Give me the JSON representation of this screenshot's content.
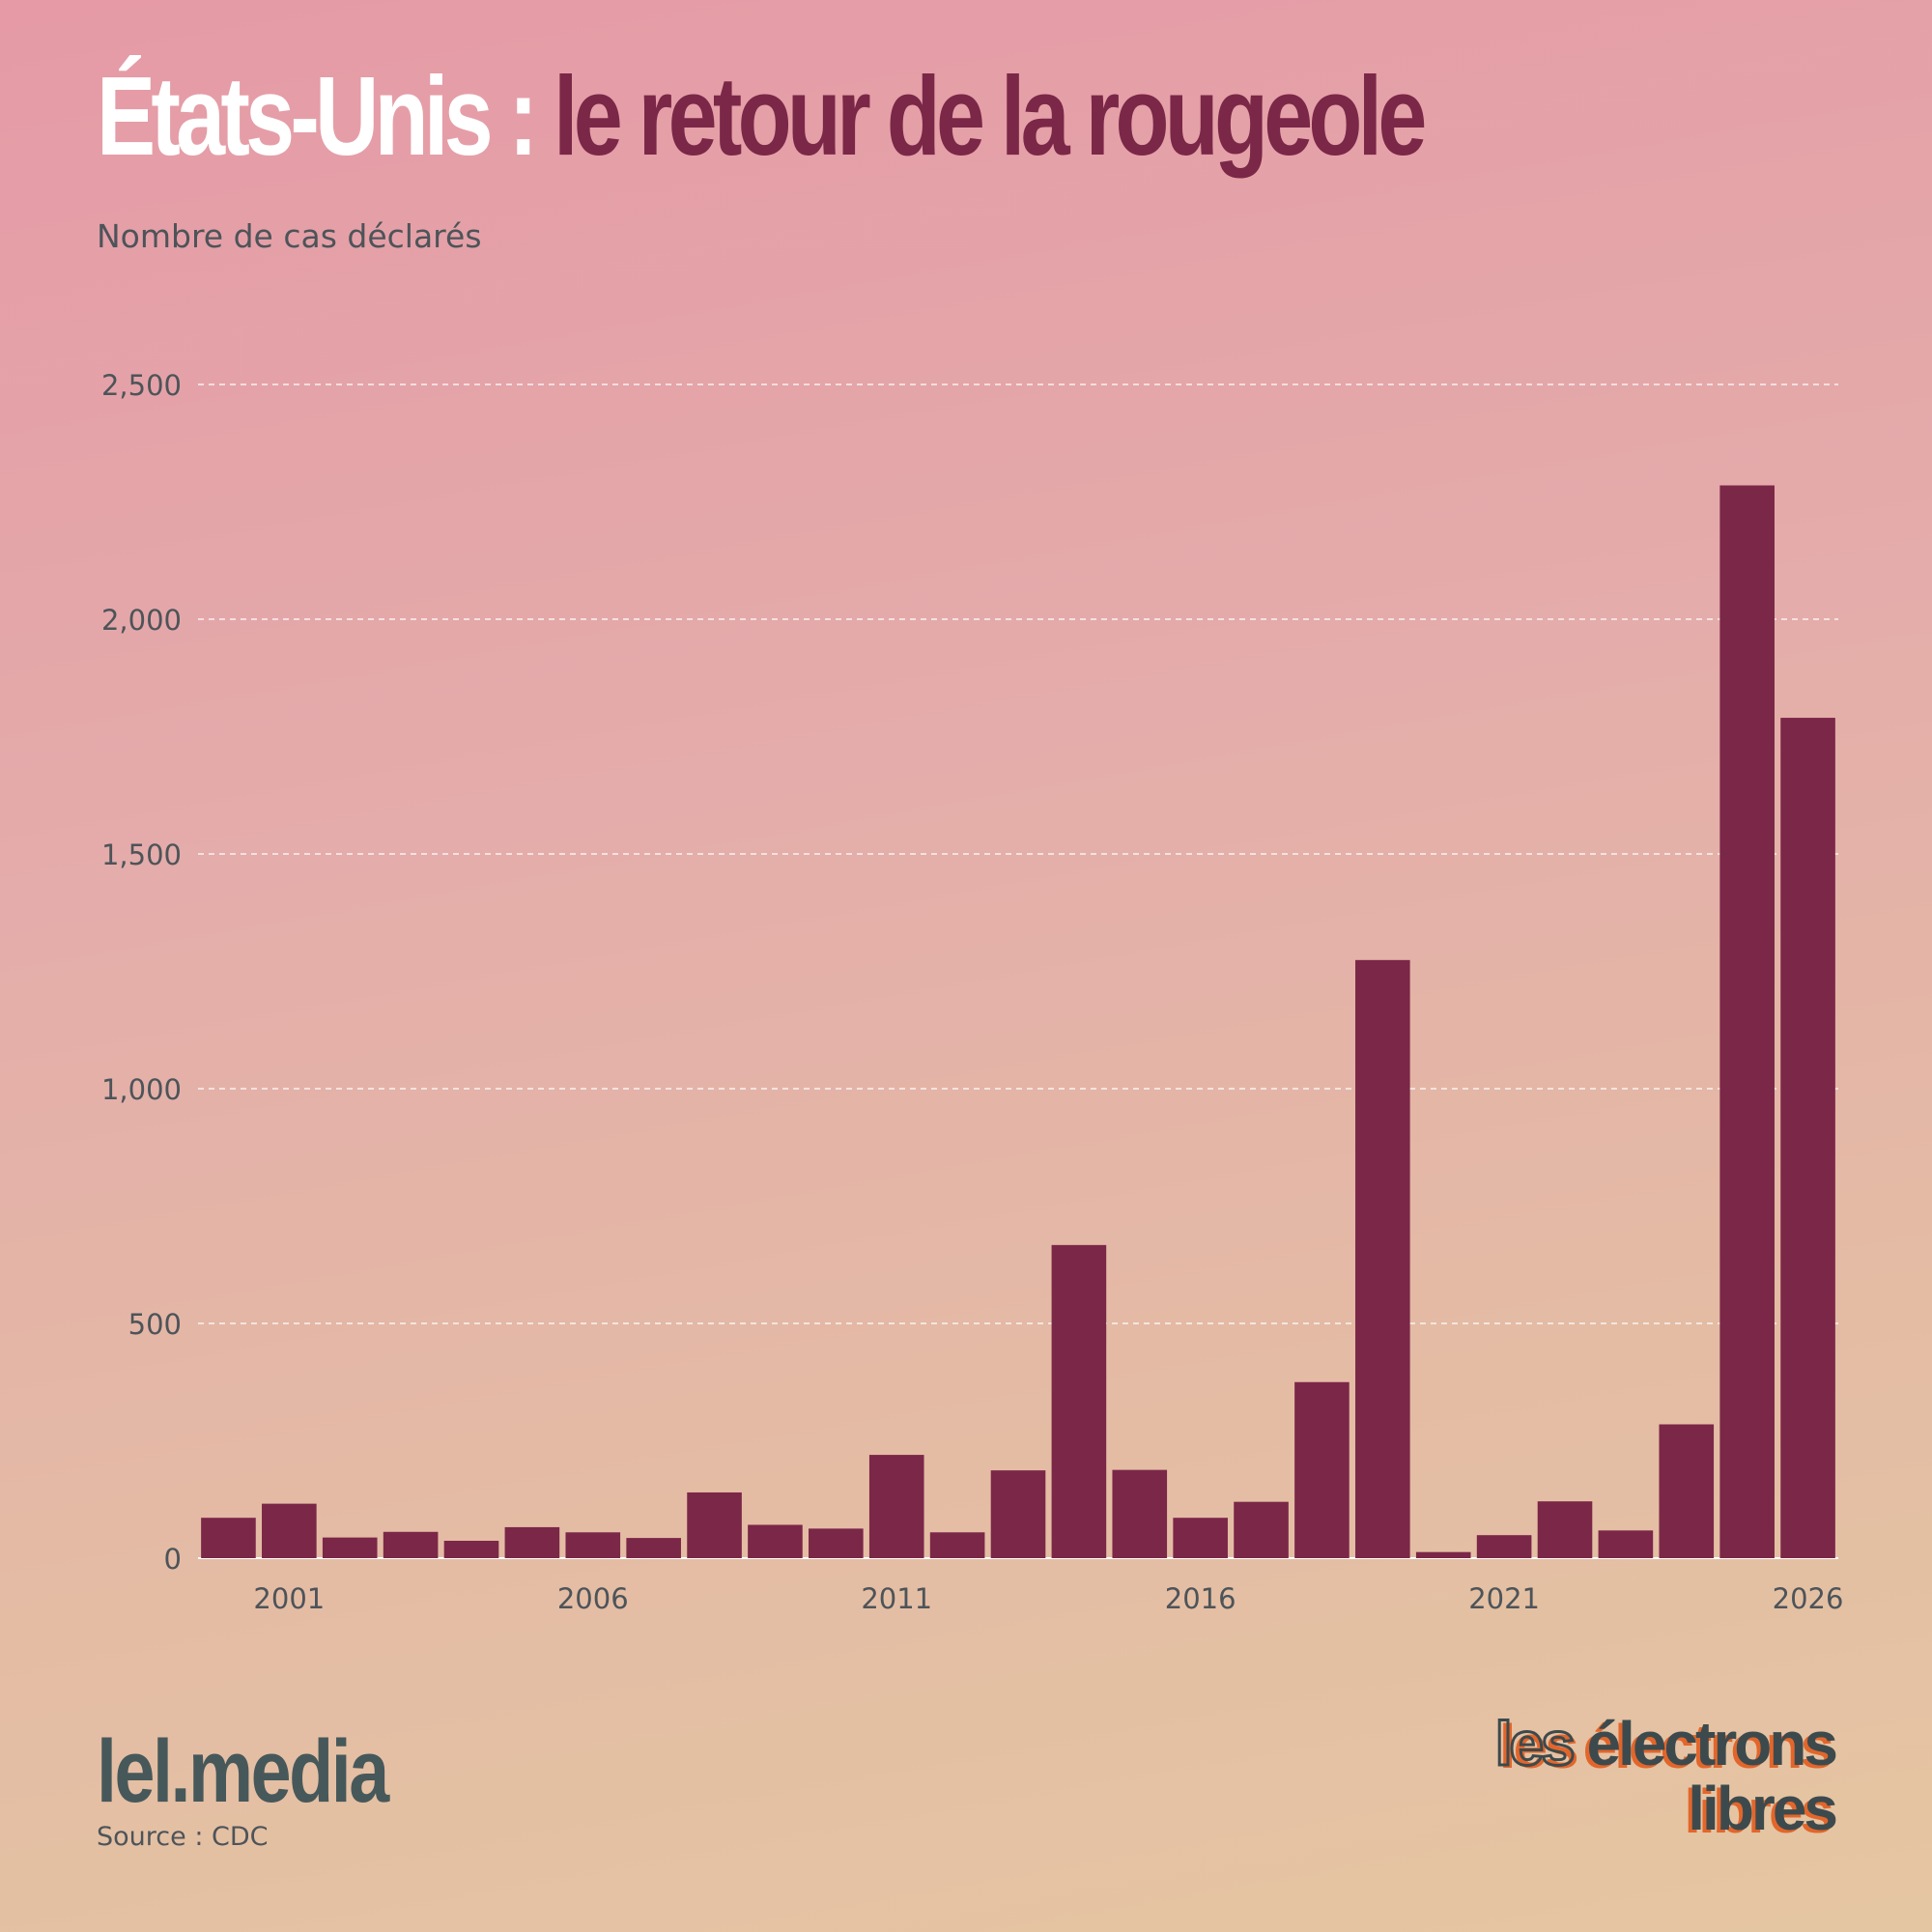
{
  "header": {
    "title_part1": "États-Unis :",
    "title_part2": "le retour de la rougeole",
    "subtitle": "Nombre de cas déclarés"
  },
  "footer": {
    "brand": "lel.media",
    "source": "Source : CDC",
    "logo_line1_a": "les",
    "logo_line1_b": "électrons",
    "logo_line2": "libres"
  },
  "colors": {
    "bar": "#7b2748",
    "title_white": "#ffffff",
    "title_accent": "#7b2748",
    "text": "#4d5459",
    "grid": "#ffffff",
    "logo_dark": "#3d4a4d",
    "logo_orange": "#e2662b"
  },
  "chart_data": {
    "type": "bar",
    "title": "",
    "xlabel": "",
    "ylabel": "",
    "x": [
      2000,
      2001,
      2002,
      2003,
      2004,
      2005,
      2006,
      2007,
      2008,
      2009,
      2010,
      2011,
      2012,
      2013,
      2014,
      2015,
      2016,
      2017,
      2018,
      2019,
      2020,
      2021,
      2022,
      2023,
      2024,
      2025,
      2026
    ],
    "values": [
      86,
      116,
      44,
      56,
      37,
      66,
      55,
      43,
      140,
      71,
      63,
      220,
      55,
      187,
      667,
      188,
      86,
      120,
      375,
      1274,
      13,
      49,
      121,
      59,
      285,
      2285,
      1790
    ],
    "x_tick_labels": [
      "2001",
      "2006",
      "2011",
      "2016",
      "2021",
      "2026"
    ],
    "x_tick_values": [
      2001,
      2006,
      2011,
      2016,
      2021,
      2026
    ],
    "y_ticks": [
      0,
      500,
      1000,
      1500,
      2000,
      2500
    ],
    "y_tick_labels": [
      "0",
      "500",
      "1,000",
      "1,500",
      "2,000",
      "2,500"
    ],
    "ylim": [
      0,
      2500
    ],
    "grid": "horizontal dashed",
    "legend": "none"
  }
}
